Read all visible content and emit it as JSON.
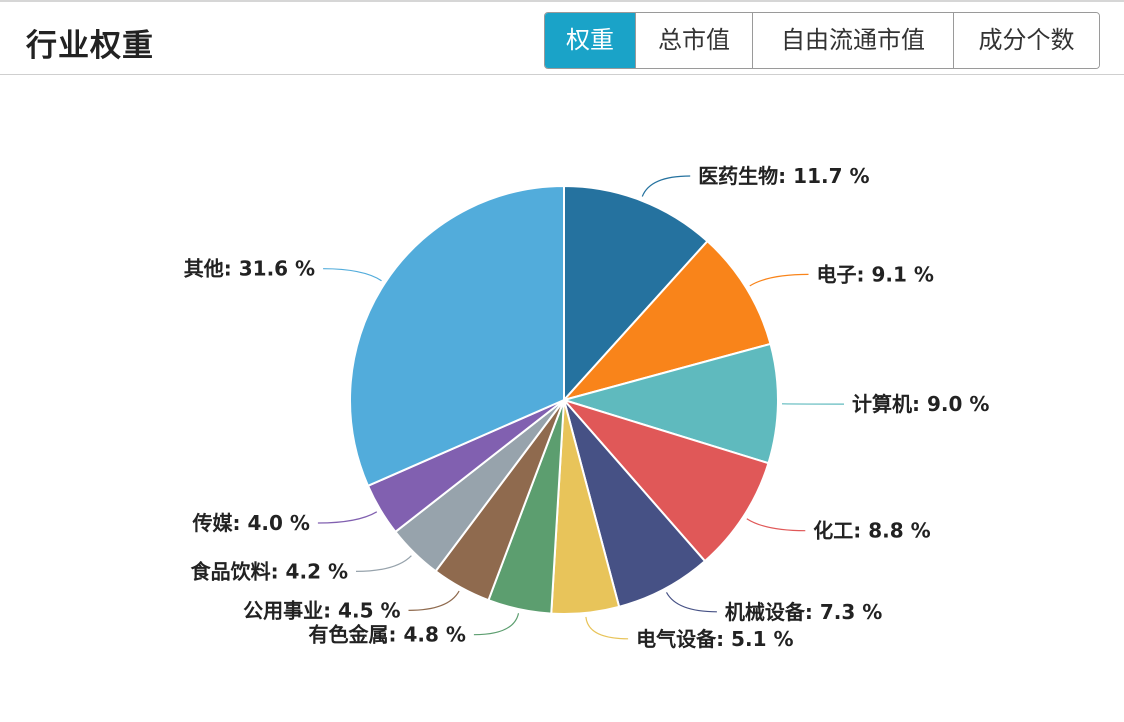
{
  "header": {
    "title": "行业权重",
    "tabs": [
      "权重",
      "总市值",
      "自由流通市值",
      "成分个数"
    ],
    "active_tab": 0
  },
  "chart_data": {
    "type": "pie",
    "unit": "%",
    "slices": [
      {
        "label": "医药生物",
        "value": 11.7,
        "color": "#25729f"
      },
      {
        "label": "电子",
        "value": 9.1,
        "color": "#f9841a"
      },
      {
        "label": "计算机",
        "value": 9.0,
        "color": "#5fbabe"
      },
      {
        "label": "化工",
        "value": 8.8,
        "color": "#e05858"
      },
      {
        "label": "机械设备",
        "value": 7.3,
        "color": "#465185"
      },
      {
        "label": "电气设备",
        "value": 5.1,
        "color": "#e8c45a"
      },
      {
        "label": "有色金属",
        "value": 4.8,
        "color": "#5c9e6f"
      },
      {
        "label": "公用事业",
        "value": 4.5,
        "color": "#8f6a4e"
      },
      {
        "label": "食品饮料",
        "value": 4.2,
        "color": "#97a3ac"
      },
      {
        "label": "传媒",
        "value": 4.0,
        "color": "#8160b0"
      },
      {
        "label": "其他",
        "value": 31.6,
        "color": "#52acdb"
      }
    ]
  }
}
